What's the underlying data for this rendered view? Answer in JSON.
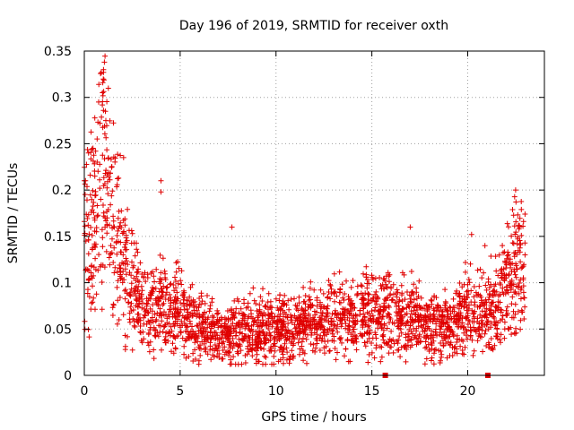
{
  "chart_data": {
    "type": "scatter",
    "title": "Day 196 of 2019, SRMTID for receiver oxth",
    "xlabel": "GPS time / hours",
    "ylabel": "SRMTID / TECUs",
    "xlim": [
      0,
      24
    ],
    "ylim": [
      0,
      0.35
    ],
    "xticks": [
      0,
      5,
      10,
      15,
      20
    ],
    "xtick_labels": [
      "0",
      "5",
      "10",
      "15",
      "20"
    ],
    "yticks": [
      0,
      0.05,
      0.1,
      0.15,
      0.2,
      0.25,
      0.3,
      0.35
    ],
    "ytick_labels": [
      "0",
      "0.05",
      "0.1",
      "0.15",
      "0.2",
      "0.25",
      "0.3",
      "0.35"
    ],
    "grid": true,
    "marker": "+",
    "color": "#e00000",
    "series": [
      {
        "name": "SRMTID",
        "profile_x": [
          0,
          0.5,
          1.0,
          1.5,
          2.0,
          2.5,
          3.0,
          4.0,
          5.0,
          6.0,
          7.0,
          8.0,
          9.0,
          10.0,
          11.0,
          12.0,
          13.0,
          14.0,
          15.0,
          16.0,
          17.0,
          18.0,
          19.0,
          20.0,
          21.0,
          22.0,
          22.5,
          23.0
        ],
        "profile_y": [
          0.15,
          0.16,
          0.24,
          0.17,
          0.12,
          0.1,
          0.07,
          0.07,
          0.07,
          0.05,
          0.045,
          0.05,
          0.05,
          0.05,
          0.05,
          0.06,
          0.06,
          0.065,
          0.07,
          0.065,
          0.06,
          0.055,
          0.05,
          0.07,
          0.07,
          0.09,
          0.12,
          0.11
        ],
        "peaks": [
          {
            "x": 1.05,
            "y": 0.338
          },
          {
            "x": 1.0,
            "y": 0.33
          },
          {
            "x": 0.95,
            "y": 0.305
          },
          {
            "x": 0.75,
            "y": 0.295
          },
          {
            "x": 1.1,
            "y": 0.285
          },
          {
            "x": 0.0,
            "y": 0.21
          },
          {
            "x": 2.05,
            "y": 0.235
          },
          {
            "x": 4.0,
            "y": 0.21
          },
          {
            "x": 4.0,
            "y": 0.198
          },
          {
            "x": 7.7,
            "y": 0.16
          },
          {
            "x": 17.0,
            "y": 0.16
          },
          {
            "x": 22.5,
            "y": 0.2
          },
          {
            "x": 20.2,
            "y": 0.152
          },
          {
            "x": 22.7,
            "y": 0.16
          },
          {
            "x": 20.9,
            "y": 0.14
          }
        ]
      }
    ],
    "marker_events": [
      15.7,
      21.05
    ]
  }
}
